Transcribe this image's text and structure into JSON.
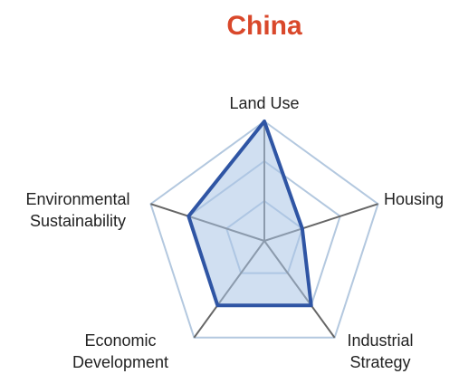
{
  "chart_data": {
    "type": "radar",
    "title": "China",
    "axes": [
      "Land Use",
      "Housing",
      "Industrial Strategy",
      "Economic Development",
      "Environmental Sustainability"
    ],
    "axis_label_lines": [
      [
        "Land Use"
      ],
      [
        "Housing"
      ],
      [
        "Industrial",
        "Strategy"
      ],
      [
        "Economic",
        "Development"
      ],
      [
        "Environmental",
        "Sustainability"
      ]
    ],
    "range": [
      0,
      3
    ],
    "rings": [
      1,
      2,
      3
    ],
    "series": [
      {
        "values": [
          3.0,
          1.0,
          2.0,
          2.0,
          2.0
        ]
      }
    ],
    "colors": {
      "title": "#d9482b",
      "grid": "#b3c8df",
      "spoke": "#666666",
      "series_line": "#2f55a4",
      "series_fill": "#a9c4e6"
    }
  }
}
